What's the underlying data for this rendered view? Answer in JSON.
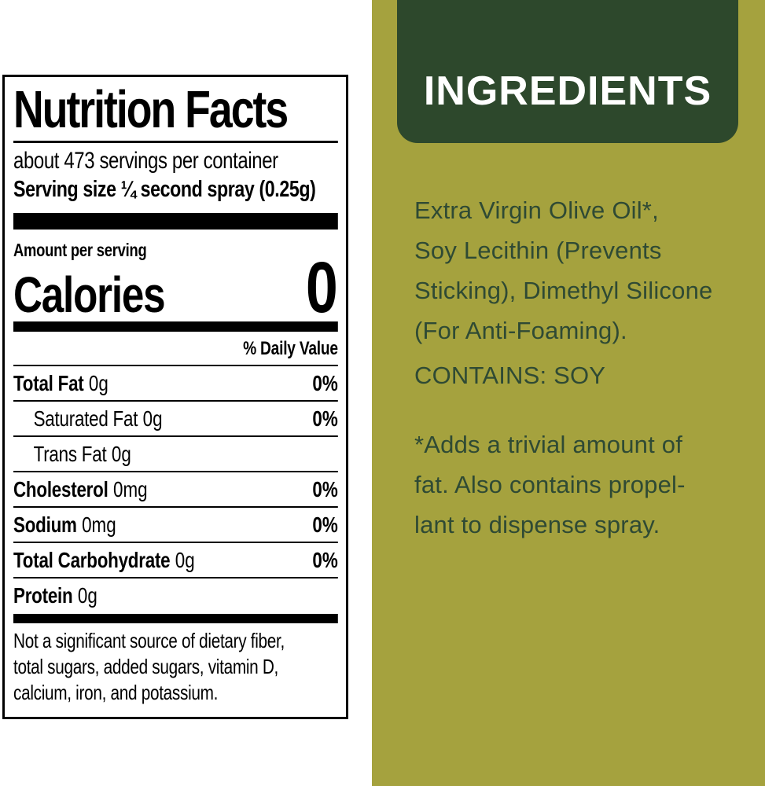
{
  "nutrition_label": {
    "title": "Nutrition Facts",
    "servings_per_container": "about 473 servings per container",
    "serving_size": "Serving size ¼ second spray (0.25g)",
    "amount_per_serving": "Amount per serving",
    "calories_label": "Calories",
    "calories_value": "0",
    "daily_value_header": "% Daily Value",
    "rows": [
      {
        "name": "Total Fat",
        "amount": "0g",
        "daily_value": "0%"
      },
      {
        "name": "Saturated Fat",
        "amount": "0g",
        "daily_value": "0%"
      },
      {
        "name": "Trans Fat",
        "amount": "0g",
        "daily_value": ""
      },
      {
        "name": "Cholesterol",
        "amount": "0mg",
        "daily_value": "0%"
      },
      {
        "name": "Sodium",
        "amount": "0mg",
        "daily_value": "0%"
      },
      {
        "name": "Total Carbohydrate",
        "amount": "0g",
        "daily_value": "0%"
      },
      {
        "name": "Protein",
        "amount": "0g",
        "daily_value": ""
      }
    ],
    "footnote": "Not a significant source of dietary fiber,\ntotal sugars, added sugars, vitamin D,\ncalcium, iron, and potassium."
  },
  "ingredients_panel": {
    "header": "INGREDIENTS",
    "ingredients_text": "Extra Virgin Olive Oil*,\nSoy Lecithin (Prevents\nSticking), Dimethyl Silicone\n(For Anti-Foaming).",
    "contains": "CONTAINS: SOY",
    "footnote": "*Adds a trivial amount of\nfat. Also contains propel-\nlant to dispense spray."
  },
  "colors": {
    "panel_olive": "#a5a23e",
    "header_dark_green": "#2d482c",
    "ingredients_text_green": "#2f4a34",
    "label_ink": "#000000"
  }
}
